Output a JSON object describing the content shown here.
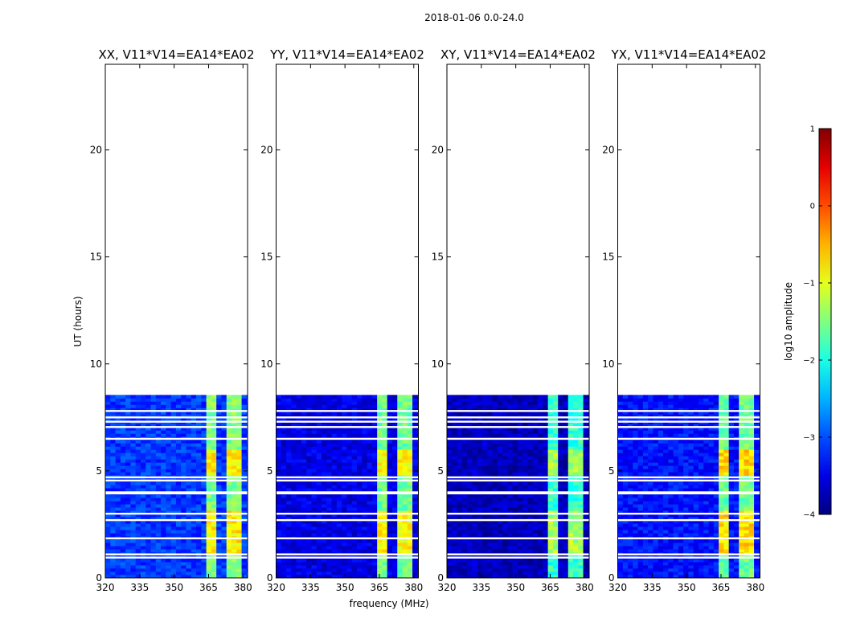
{
  "figure_title": "2018-01-06 0.0-24.0",
  "chart_data": {
    "type": "heatmap",
    "xlabel": "frequency (MHz)",
    "ylabel": "UT (hours)",
    "xlim": [
      320,
      382
    ],
    "ylim": [
      0,
      24
    ],
    "xticks": [
      320,
      335,
      350,
      365,
      380
    ],
    "yticks": [
      0,
      5,
      10,
      15,
      20
    ],
    "data_extent_hours": [
      0,
      8.5
    ],
    "bright_channels_mhz": [
      [
        363.5,
        368.5
      ],
      [
        369.5,
        371.5
      ],
      [
        372.5,
        375
      ],
      [
        376,
        379.5
      ]
    ],
    "gap_rows_hours": [
      0.95,
      1.1,
      1.85,
      2.7,
      3.0,
      3.95,
      4.0,
      4.55,
      4.7,
      6.5,
      7.05,
      7.3,
      7.5,
      7.8
    ],
    "panels": [
      {
        "title": "XX, V11*V14=EA14*EA02",
        "background_log_amp": -3.1,
        "band_log_amp": [
          -1.5,
          -0.8
        ]
      },
      {
        "title": "YY, V11*V14=EA14*EA02",
        "background_log_amp": -3.5,
        "band_log_amp": [
          -1.6,
          -0.9
        ]
      },
      {
        "title": "XY, V11*V14=EA14*EA02",
        "background_log_amp": -3.7,
        "band_log_amp": [
          -1.9,
          -1.3
        ]
      },
      {
        "title": "YX, V11*V14=EA14*EA02",
        "background_log_amp": -3.3,
        "band_log_amp": [
          -1.6,
          -0.7
        ]
      }
    ],
    "colorbar": {
      "label": "log10 amplitude",
      "range": [
        -4,
        1
      ],
      "ticks": [
        -4,
        -3,
        -2,
        -1,
        0,
        1
      ],
      "tick_labels": [
        "−4",
        "−3",
        "−2",
        "−1",
        "0",
        "1"
      ],
      "colormap": "jet"
    }
  }
}
